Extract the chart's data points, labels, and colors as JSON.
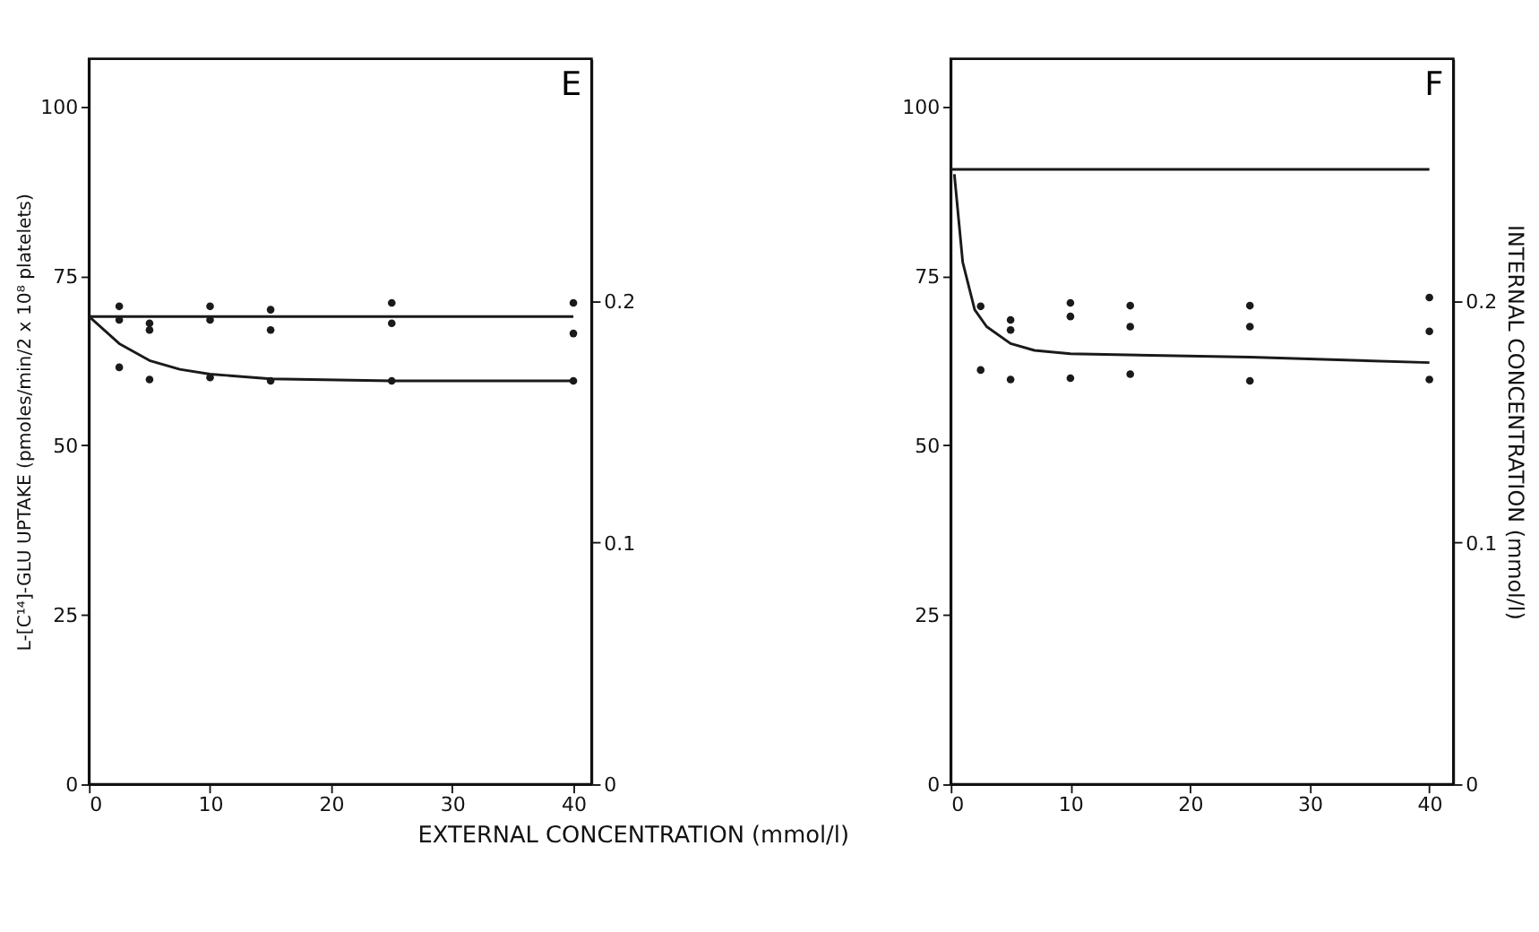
{
  "chart_data": [
    {
      "type": "scatter",
      "title": "E",
      "xlabel": "EXTERNAL CONCENTRATION (mmol/l)",
      "ylabel": "L-[C¹⁴]-GLU UPTAKE (pmoles/min/2 x 10⁸ platelets)",
      "xlim": [
        0,
        41.5
      ],
      "xticks": [
        0,
        10,
        20,
        30,
        40
      ],
      "ylim": [
        0,
        107
      ],
      "yticks": [
        0,
        25,
        50,
        75,
        100
      ],
      "y2lim": [
        0,
        0.3
      ],
      "y2ticks": [
        0,
        0.1,
        0.2
      ],
      "line_style": "solid",
      "series": [
        {
          "marker": "circle",
          "color": "#1a1a1a",
          "x": [
            2.5,
            2.5,
            5,
            5,
            10,
            10,
            15,
            15,
            25,
            25,
            40,
            40
          ],
          "values": [
            70.5,
            68.5,
            68,
            67,
            70.5,
            68.5,
            70,
            67,
            71,
            68,
            71,
            66.5
          ]
        },
        {
          "marker": "circle",
          "color": "#1a1a1a",
          "x": [
            2.5,
            5,
            10,
            15,
            25,
            40
          ],
          "values": [
            61.5,
            59.7,
            60,
            59.5,
            59.5,
            59.5
          ]
        },
        {
          "type": "line",
          "marker": "none",
          "color": "#1a1a1a",
          "x": [
            0,
            10,
            20,
            30,
            40
          ],
          "values": [
            69,
            69,
            69,
            69,
            69
          ]
        },
        {
          "type": "line",
          "marker": "none",
          "color": "#1a1a1a",
          "x": [
            0,
            2.5,
            5,
            7.5,
            10,
            15,
            25,
            40
          ],
          "values": [
            69,
            65,
            62.5,
            61.2,
            60.5,
            59.8,
            59.5,
            59.5
          ]
        }
      ]
    },
    {
      "type": "scatter",
      "title": "F",
      "y2label": "INTERNAL CONCENTRATION (mmol/l)",
      "xlim": [
        0,
        42
      ],
      "xticks": [
        0,
        10,
        20,
        30,
        40
      ],
      "ylim": [
        0,
        107
      ],
      "yticks": [
        0,
        25,
        50,
        75,
        100
      ],
      "y2lim": [
        0,
        0.3
      ],
      "y2ticks": [
        0,
        0.1,
        0.2
      ],
      "line_style": "solid",
      "series": [
        {
          "marker": "circle",
          "color": "#1a1a1a",
          "x": [
            2.5,
            5,
            5,
            10,
            10,
            15,
            15,
            25,
            25,
            40,
            40
          ],
          "values": [
            70.5,
            68.5,
            67,
            71,
            69,
            70.6,
            67.5,
            70.6,
            67.5,
            71.8,
            66.8
          ]
        },
        {
          "marker": "circle",
          "color": "#1a1a1a",
          "x": [
            2.5,
            5,
            10,
            15,
            25,
            40
          ],
          "values": [
            61.1,
            59.7,
            59.9,
            60.5,
            59.5,
            59.7
          ]
        },
        {
          "type": "line",
          "marker": "none",
          "color": "#1a1a1a",
          "x": [
            0,
            40
          ],
          "values": [
            90.7,
            90.7
          ]
        },
        {
          "type": "line",
          "marker": "none",
          "color": "#1a1a1a",
          "x": [
            0.3,
            1,
            2,
            3,
            5,
            7,
            10,
            25,
            40
          ],
          "values": [
            90,
            77,
            70,
            67.5,
            65,
            64,
            63.5,
            63,
            62.2
          ]
        }
      ]
    }
  ]
}
